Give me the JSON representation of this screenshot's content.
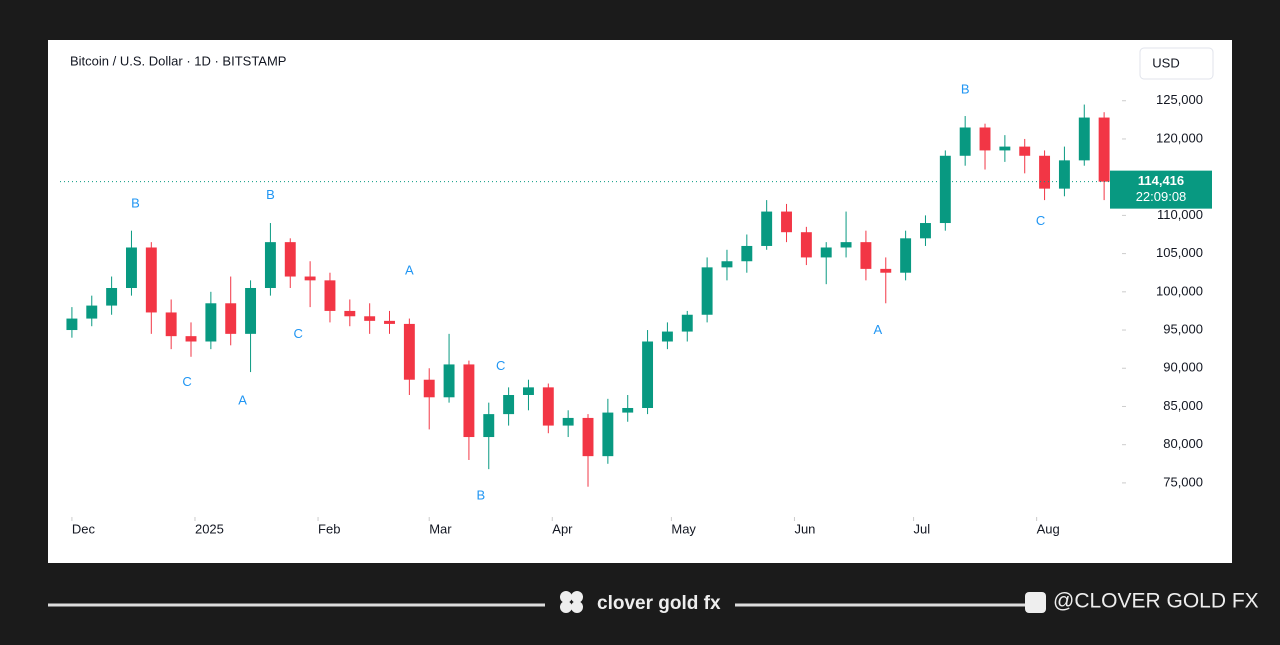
{
  "header": {
    "symbol": "Bitcoin / U.S. Dollar · 1D · BITSTAMP",
    "currency": "USD"
  },
  "chart_data": {
    "type": "candlestick",
    "x": [
      0,
      5,
      10,
      15,
      20,
      25,
      30,
      35,
      40,
      45,
      50,
      55,
      60,
      65,
      70,
      75,
      80,
      85,
      90,
      95,
      100,
      105,
      110,
      115,
      120,
      125,
      130,
      135,
      140,
      145,
      150,
      155,
      160,
      165,
      170,
      175,
      180,
      185,
      190,
      195,
      200,
      205,
      210,
      215,
      220,
      225,
      230,
      235,
      240,
      245,
      250,
      255,
      260
    ],
    "open": [
      95000,
      96500,
      98200,
      100500,
      105800,
      97300,
      94200,
      93500,
      98500,
      94500,
      100500,
      106500,
      102000,
      101500,
      97500,
      96800,
      96200,
      95800,
      88500,
      86200,
      90500,
      81000,
      84000,
      86500,
      87500,
      82500,
      83500,
      78500,
      84200,
      84800,
      93500,
      94800,
      97000,
      103200,
      104000,
      106000,
      110500,
      107800,
      104500,
      105800,
      106500,
      103000,
      102500,
      107000,
      109000,
      117800,
      121500,
      118500,
      119000,
      117800,
      113500,
      117200,
      122800
    ],
    "high": [
      98000,
      99500,
      102000,
      108000,
      106500,
      99000,
      96000,
      100000,
      102000,
      101500,
      109000,
      107000,
      104000,
      102500,
      99000,
      98500,
      97500,
      96500,
      90000,
      94500,
      91000,
      85500,
      87500,
      88500,
      88000,
      84500,
      84000,
      86000,
      86500,
      95000,
      96000,
      97500,
      104500,
      105500,
      107500,
      112000,
      111500,
      108500,
      106500,
      110500,
      108000,
      104500,
      108000,
      110000,
      118500,
      123000,
      122000,
      120500,
      120000,
      118500,
      119000,
      124500,
      123500
    ],
    "low": [
      94000,
      95500,
      97000,
      99500,
      94500,
      92500,
      91500,
      92500,
      93000,
      89500,
      99500,
      100500,
      98000,
      96000,
      95500,
      94500,
      94500,
      86500,
      82000,
      85500,
      78000,
      76800,
      82500,
      84500,
      81500,
      81000,
      74500,
      77500,
      83000,
      84000,
      92500,
      93500,
      96000,
      101500,
      102500,
      105500,
      106500,
      103500,
      101000,
      104500,
      101500,
      98500,
      101500,
      106000,
      108000,
      116500,
      116000,
      117000,
      115500,
      112000,
      112500,
      116500,
      112000
    ],
    "close": [
      96500,
      98200,
      100500,
      105800,
      97300,
      94200,
      93500,
      98500,
      94500,
      100500,
      106500,
      102000,
      101500,
      97500,
      96800,
      96200,
      95800,
      88500,
      86200,
      90500,
      81000,
      84000,
      86500,
      87500,
      82500,
      83500,
      78500,
      84200,
      84800,
      93500,
      94800,
      97000,
      103200,
      104000,
      106000,
      110500,
      107800,
      104500,
      105800,
      106500,
      103000,
      102500,
      107000,
      109000,
      117800,
      121500,
      118500,
      119000,
      117800,
      113500,
      117200,
      122800,
      114416
    ],
    "up_color": "#089981",
    "down_color": "#f23645",
    "xlim": [
      -3,
      264
    ],
    "xticks": [
      {
        "value": 0,
        "label": "Dec"
      },
      {
        "value": 31,
        "label": "2025"
      },
      {
        "value": 62,
        "label": "Feb"
      },
      {
        "value": 90,
        "label": "Mar"
      },
      {
        "value": 121,
        "label": "Apr"
      },
      {
        "value": 151,
        "label": "May"
      },
      {
        "value": 182,
        "label": "Jun"
      },
      {
        "value": 212,
        "label": "Jul"
      },
      {
        "value": 243,
        "label": "Aug"
      }
    ],
    "ylim": [
      70800,
      131900
    ],
    "yticks": [
      {
        "value": 75000,
        "label": "75,000"
      },
      {
        "value": 80000,
        "label": "80,000"
      },
      {
        "value": 85000,
        "label": "85,000"
      },
      {
        "value": 90000,
        "label": "90,000"
      },
      {
        "value": 95000,
        "label": "95,000"
      },
      {
        "value": 100000,
        "label": "100,000"
      },
      {
        "value": 105000,
        "label": "105,000"
      },
      {
        "value": 110000,
        "label": "110,000"
      },
      {
        "value": 115000,
        "label": "115,000"
      },
      {
        "value": 120000,
        "label": "120,000"
      },
      {
        "value": 125000,
        "label": "125,000"
      }
    ],
    "last_price": {
      "value": 114416,
      "label": "114,416"
    },
    "countdown": "22:09:08",
    "annotations": [
      {
        "text": "B",
        "x": 16,
        "y": 111500
      },
      {
        "text": "C",
        "x": 29,
        "y": 88100
      },
      {
        "text": "A",
        "x": 43,
        "y": 85700
      },
      {
        "text": "B",
        "x": 50,
        "y": 112600
      },
      {
        "text": "C",
        "x": 57,
        "y": 94400
      },
      {
        "text": "A",
        "x": 85,
        "y": 102700
      },
      {
        "text": "B",
        "x": 103,
        "y": 73300
      },
      {
        "text": "C",
        "x": 108,
        "y": 90200
      },
      {
        "text": "A",
        "x": 203,
        "y": 94900
      },
      {
        "text": "B",
        "x": 225,
        "y": 126400
      },
      {
        "text": "C",
        "x": 244,
        "y": 109200
      }
    ]
  },
  "footer": {
    "brand": "clover gold fx",
    "handle": "@CLOVER GOLD FX"
  }
}
